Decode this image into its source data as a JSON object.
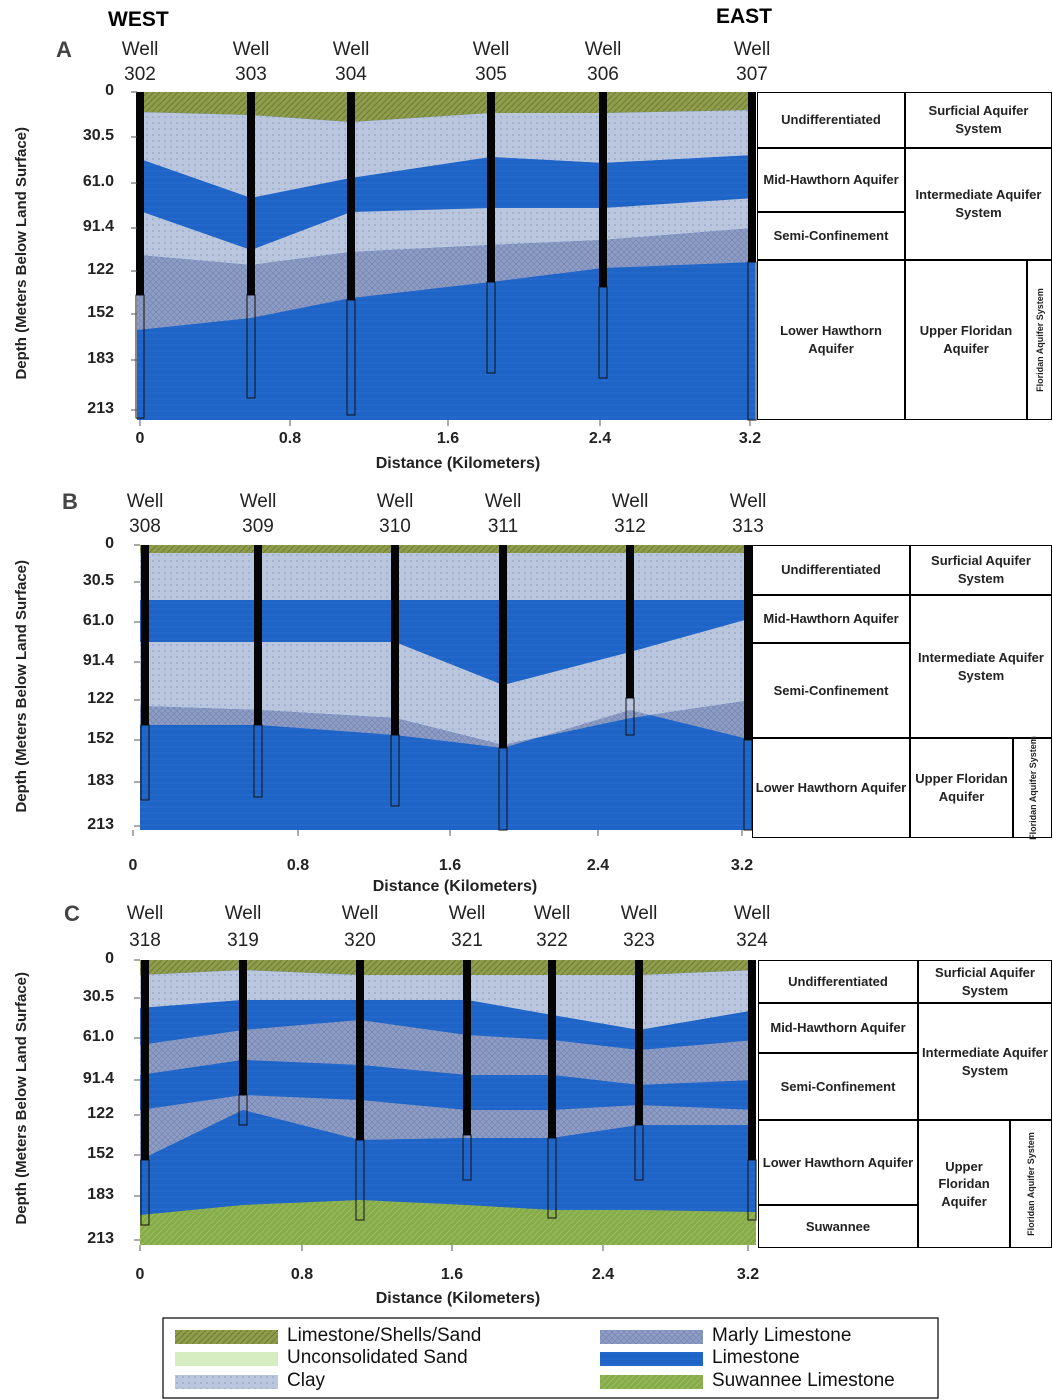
{
  "header": {
    "west": "WEST",
    "east": "EAST"
  },
  "panels": [
    {
      "label": "A",
      "wells": [
        {
          "label": "Well",
          "number": "302"
        },
        {
          "label": "Well",
          "number": "303"
        },
        {
          "label": "Well",
          "number": "304"
        },
        {
          "label": "Well",
          "number": "305"
        },
        {
          "label": "Well",
          "number": "306"
        },
        {
          "label": "Well",
          "number": "307"
        }
      ],
      "yticks": [
        "0",
        "30.5",
        "61.0",
        "91.4",
        "122",
        "152",
        "183",
        "213"
      ],
      "xticks": [
        "0",
        "0.8",
        "1.6",
        "2.4",
        "3.2"
      ],
      "y_label": "Depth (Meters Below Land Surface)",
      "x_label": "Distance (Kilometers)",
      "units": [
        "Undifferentiated",
        "Surficial Aquifer System",
        "Mid-Hawthorn Aquifer",
        "Intermediate Aquifer System",
        "Semi-Confinement",
        "Lower Hawthorn Aquifer",
        "Upper Floridan Aquifer",
        "Floridan Aquifer System"
      ]
    },
    {
      "label": "B",
      "wells": [
        {
          "label": "Well",
          "number": "308"
        },
        {
          "label": "Well",
          "number": "309"
        },
        {
          "label": "Well",
          "number": "310"
        },
        {
          "label": "Well",
          "number": "311"
        },
        {
          "label": "Well",
          "number": "312"
        },
        {
          "label": "Well",
          "number": "313"
        }
      ],
      "yticks": [
        "0",
        "30.5",
        "61.0",
        "91.4",
        "122",
        "152",
        "183",
        "213"
      ],
      "xticks": [
        "0",
        "0.8",
        "1.6",
        "2.4",
        "3.2"
      ],
      "y_label": "Depth (Meters Below Land Surface)",
      "x_label": "Distance (Kilometers)",
      "units": [
        "Undifferentiated",
        "Surficial Aquifer System",
        "Mid-Hawthorn Aquifer",
        "Intermediate Aquifer System",
        "Semi-Confinement",
        "Lower Hawthorn Aquifer",
        "Upper Floridan Aquifer",
        "Floridan Aquifer System"
      ]
    },
    {
      "label": "C",
      "wells": [
        {
          "label": "Well",
          "number": "318"
        },
        {
          "label": "Well",
          "number": "319"
        },
        {
          "label": "Well",
          "number": "320"
        },
        {
          "label": "Well",
          "number": "321"
        },
        {
          "label": "Well",
          "number": "322"
        },
        {
          "label": "Well",
          "number": "323"
        },
        {
          "label": "Well",
          "number": "324"
        }
      ],
      "yticks": [
        "0",
        "30.5",
        "61.0",
        "91.4",
        "122",
        "152",
        "183",
        "213"
      ],
      "xticks": [
        "0",
        "0.8",
        "1.6",
        "2.4",
        "3.2"
      ],
      "y_label": "Depth (Meters Below Land Surface)",
      "x_label": "Distance (Kilometers)",
      "units": [
        "Undifferentiated",
        "Surficial Aquifer System",
        "Mid-Hawthorn Aquifer",
        "Intermediate Aquifer System",
        "Semi-Confinement",
        "Lower Hawthorn Aquifer",
        "Upper Floridan Aquifer",
        "Floridan Aquifer System",
        "Suwannee"
      ]
    }
  ],
  "legend": [
    "Limestone/Shells/Sand",
    "Unconsolidated Sand",
    "Clay",
    "Marly Limestone",
    "Limestone",
    "Suwannee Limestone"
  ]
}
